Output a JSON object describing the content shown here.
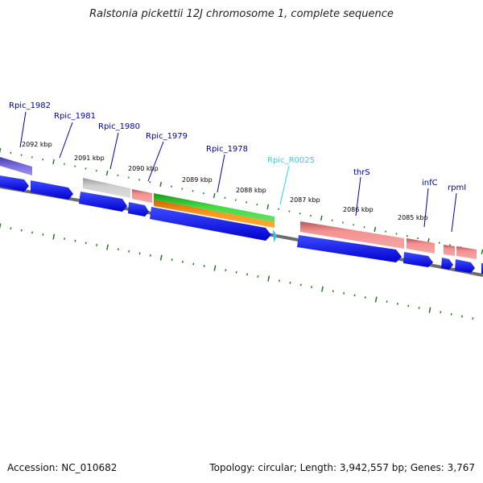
{
  "title": "Ralstonia pickettii 12J chromosome 1, complete sequence",
  "footer": {
    "accession": "Accession: NC_010682",
    "summary": "Topology: circular; Length: 3,942,557 bp; Genes: 3,767"
  },
  "ticks": [
    "2092 kbp",
    "2091 kbp",
    "2090 kbp",
    "2089 kbp",
    "2088 kbp",
    "2087 kbp",
    "2086 kbp",
    "2085 kbp"
  ],
  "genes": [
    {
      "label": "Rpic_1982",
      "color": "#0000aa"
    },
    {
      "label": "Rpic_1981",
      "color": "#0000aa"
    },
    {
      "label": "Rpic_1980",
      "color": "#0000aa"
    },
    {
      "label": "Rpic_1979",
      "color": "#0000aa"
    },
    {
      "label": "Rpic_1978",
      "color": "#0000aa"
    },
    {
      "label": "Rpic_R0025",
      "color": "#33ccee"
    },
    {
      "label": "thrS",
      "color": "#0000aa"
    },
    {
      "label": "infC",
      "color": "#0000aa"
    },
    {
      "label": "rpmI",
      "color": "#0000aa"
    }
  ],
  "colors": {
    "cds": "#0a14e6",
    "rna": "#33bbee",
    "feature_red": "#f08080",
    "feature_gray": "#bdbdbd",
    "feature_green": "#33cc33",
    "feature_orange": "#ff8c1a",
    "feature_purple": "#6a5acd",
    "backbone": "#777777",
    "tick": "#227722"
  }
}
